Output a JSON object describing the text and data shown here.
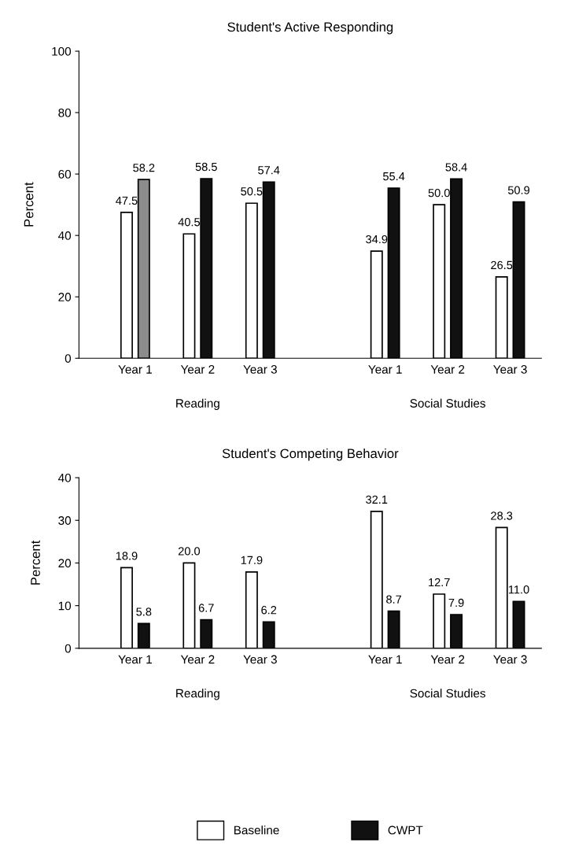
{
  "chart_data": [
    {
      "type": "bar",
      "title": "Student's Active Responding",
      "ylabel": "Percent",
      "categories": [
        "Year 1",
        "Year 2",
        "Year 3",
        null,
        "Year 1",
        "Year 2",
        "Year 3"
      ],
      "ylim": [
        0,
        100
      ],
      "yticks": [
        0,
        20,
        40,
        60,
        80,
        100
      ],
      "grid": false,
      "annotations": [
        "Reading",
        "Social Studies"
      ],
      "series": [
        {
          "color": "#ffffff",
          "values": [
            47.5,
            40.5,
            50.5,
            null,
            34.9,
            50.0,
            26.5
          ],
          "value_labels": [
            "47.5",
            "40.5",
            "50.5",
            null,
            "34.9",
            "50.0",
            "26.5"
          ]
        },
        {
          "color": "#111111",
          "colors": [
            "#8c8c8c",
            "#111111",
            "#111111",
            "#111111",
            "#111111",
            "#111111",
            "#111111"
          ],
          "values": [
            58.2,
            58.5,
            57.4,
            null,
            55.4,
            58.4,
            50.9
          ],
          "value_labels": [
            "58.2",
            "58.5",
            "57.4",
            null,
            "55.4",
            "58.4",
            "50.9"
          ]
        }
      ]
    },
    {
      "type": "bar",
      "title": "Student's Competing Behavior",
      "ylabel": "Percent",
      "categories": [
        "Year 1",
        "Year 2",
        "Year 3",
        null,
        "Year 1",
        "Year 2",
        "Year 3"
      ],
      "ylim": [
        0,
        40
      ],
      "yticks": [
        0,
        10,
        20,
        30,
        40
      ],
      "grid": false,
      "legend": "bottom",
      "annotations": [
        "Reading",
        "Social Studies"
      ],
      "series": [
        {
          "name": "Baseline",
          "color": "#ffffff",
          "values": [
            18.9,
            20.0,
            17.9,
            null,
            32.1,
            12.7,
            28.3
          ],
          "value_labels": [
            "18.9",
            "20.0",
            "17.9",
            null,
            "32.1",
            "12.7",
            "28.3"
          ]
        },
        {
          "name": "CWPT",
          "color": "#111111",
          "values": [
            5.8,
            6.7,
            6.2,
            null,
            8.7,
            7.9,
            11.0
          ],
          "value_labels": [
            "5.8",
            "6.7",
            "6.2",
            null,
            "8.7",
            "7.9",
            "11.0"
          ]
        }
      ]
    }
  ]
}
